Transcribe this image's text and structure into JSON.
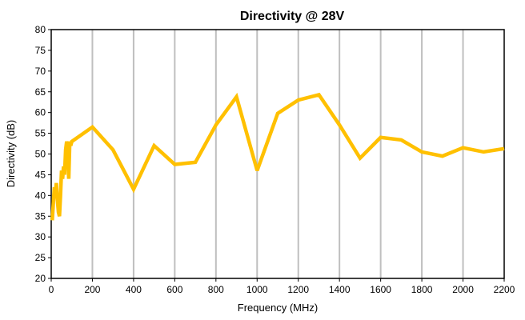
{
  "chart_data": {
    "type": "line",
    "title": "Directivity @ 28V",
    "xlabel": "Frequency (MHz)",
    "ylabel": "Directivity (dB)",
    "xlim": [
      0,
      2200
    ],
    "ylim": [
      20,
      80
    ],
    "x_ticks": [
      0,
      200,
      400,
      600,
      800,
      1000,
      1200,
      1400,
      1600,
      1800,
      2000,
      2200
    ],
    "y_ticks": [
      20,
      25,
      30,
      35,
      40,
      45,
      50,
      55,
      60,
      65,
      70,
      75,
      80
    ],
    "grid": {
      "vertical": true,
      "horizontal": false
    },
    "legend": "none",
    "series": [
      {
        "color": "#FFC000",
        "points": [
          [
            5,
            34
          ],
          [
            10,
            38
          ],
          [
            15,
            42
          ],
          [
            20,
            40
          ],
          [
            25,
            43
          ],
          [
            30,
            39
          ],
          [
            35,
            36
          ],
          [
            40,
            35
          ],
          [
            45,
            40
          ],
          [
            50,
            46
          ],
          [
            55,
            44
          ],
          [
            60,
            47
          ],
          [
            65,
            45
          ],
          [
            70,
            51
          ],
          [
            75,
            53
          ],
          [
            80,
            52
          ],
          [
            85,
            44
          ],
          [
            90,
            53
          ],
          [
            95,
            52
          ],
          [
            100,
            53
          ],
          [
            200,
            56.5
          ],
          [
            300,
            51
          ],
          [
            400,
            41.5
          ],
          [
            500,
            52
          ],
          [
            600,
            47.5
          ],
          [
            700,
            48
          ],
          [
            800,
            57
          ],
          [
            900,
            63.8
          ],
          [
            1000,
            46
          ],
          [
            1100,
            59.8
          ],
          [
            1200,
            63
          ],
          [
            1300,
            64.3
          ],
          [
            1400,
            57
          ],
          [
            1500,
            49
          ],
          [
            1600,
            54
          ],
          [
            1700,
            53.4
          ],
          [
            1800,
            50.5
          ],
          [
            1900,
            49.5
          ],
          [
            2000,
            51.5
          ],
          [
            2100,
            50.5
          ],
          [
            2200,
            51.3
          ]
        ]
      }
    ]
  }
}
